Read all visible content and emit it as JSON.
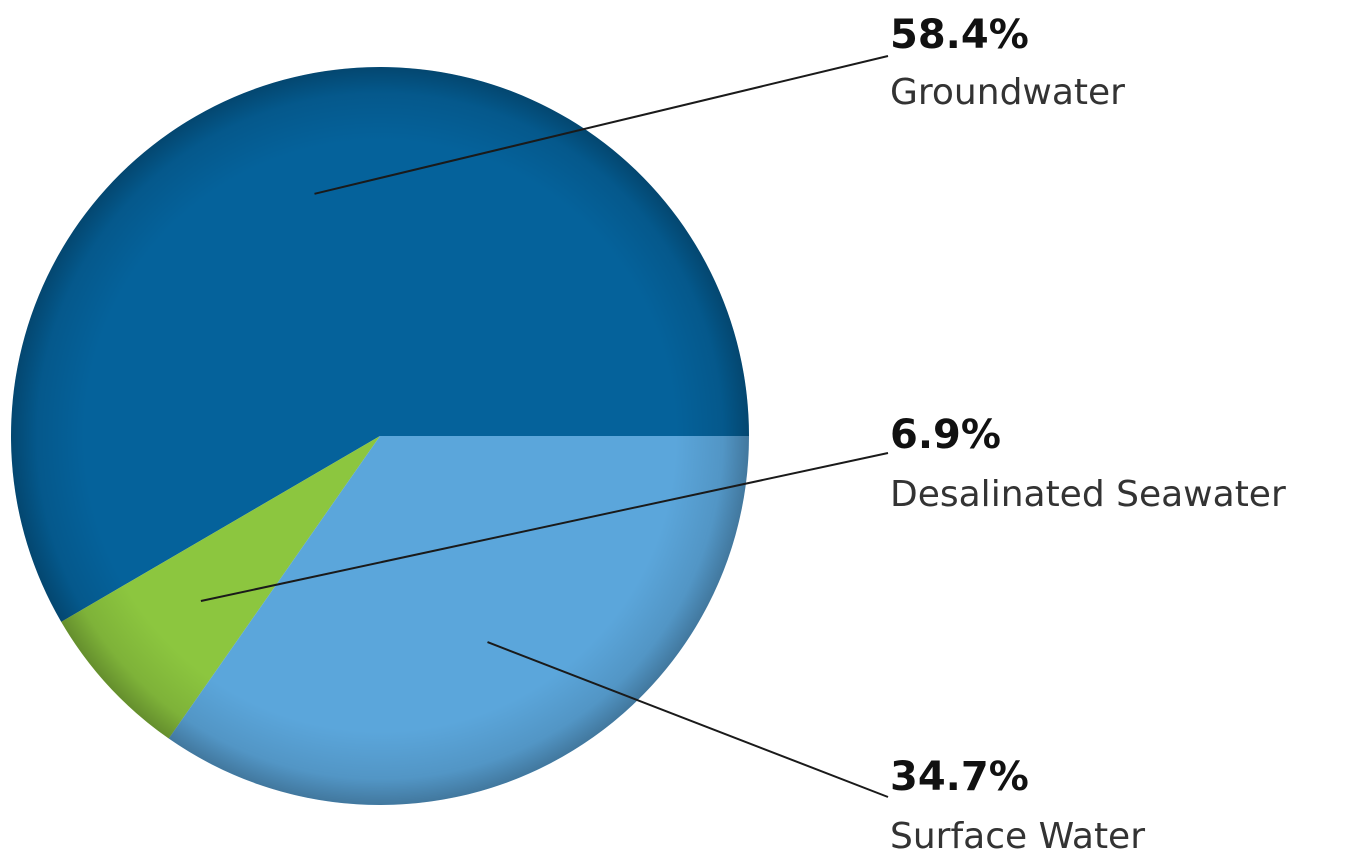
{
  "chart_data": {
    "type": "pie",
    "slices": [
      {
        "label": "Groundwater",
        "value": 58.4,
        "value_text": "58.4%",
        "color": "#05629b"
      },
      {
        "label": "Desalinated Seawater",
        "value": 6.9,
        "value_text": "6.9%",
        "color": "#8cc63f"
      },
      {
        "label": "Surface Water",
        "value": 34.7,
        "value_text": "34.7%",
        "color": "#5ba6db"
      }
    ],
    "units": "%",
    "legend": "none",
    "labels_placement": "right"
  }
}
